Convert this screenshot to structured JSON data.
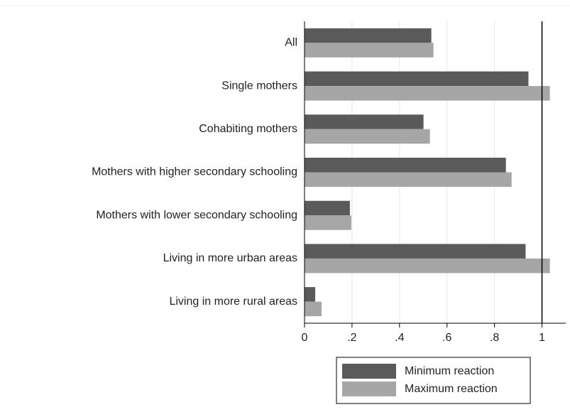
{
  "chart_data": {
    "type": "hbar",
    "categories": [
      "All",
      "Single mothers",
      "Cohabiting mothers",
      "Mothers with higher secondary schooling",
      "Mothers with lower secondary schooling",
      "Living in more urban areas",
      "Living in more rural areas"
    ],
    "series": [
      {
        "name": "Minimum reaction",
        "color": "#5a5a5a",
        "values": [
          0.534,
          0.943,
          0.501,
          0.848,
          0.191,
          0.931,
          0.045
        ]
      },
      {
        "name": "Maximum reaction",
        "color": "#a6a6a6",
        "values": [
          0.543,
          1.033,
          0.528,
          0.872,
          0.197,
          1.033,
          0.072
        ]
      }
    ],
    "xlim": [
      0,
      1.1
    ],
    "xticks": [
      0,
      {
        "value": 0.2,
        "label": ".2"
      },
      {
        "value": 0.4,
        "label": ".4"
      },
      {
        "value": 0.6,
        "label": ".6"
      },
      {
        "value": 0.8,
        "label": ".8"
      },
      1
    ],
    "reference_line": 1,
    "grid": true,
    "legend": "bottom"
  }
}
